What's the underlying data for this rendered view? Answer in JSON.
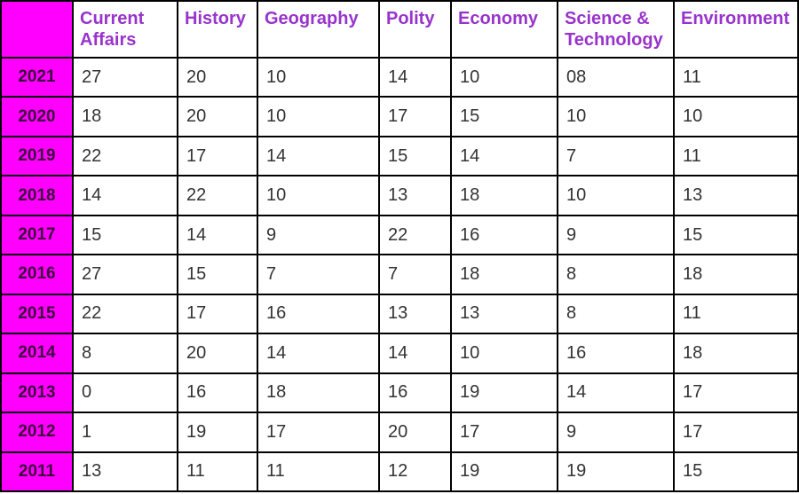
{
  "colors": {
    "magenta_fill": "#FF00FF",
    "header_text": "#9933CC",
    "year_text": "#3D083D",
    "cell_text": "#333333",
    "border": "#000000"
  },
  "table": {
    "corner_label": "",
    "columns": [
      "Current Affairs",
      "History",
      "Geography",
      "Polity",
      "Economy",
      "Science & Technology",
      "Environment"
    ],
    "rows": [
      {
        "year": "2021",
        "values": [
          "27",
          "20",
          "10",
          "14",
          "10",
          "08",
          "11"
        ]
      },
      {
        "year": "2020",
        "values": [
          "18",
          "20",
          "10",
          "17",
          "15",
          "10",
          "10"
        ]
      },
      {
        "year": "2019",
        "values": [
          "22",
          "17",
          "14",
          "15",
          "14",
          "7",
          "11"
        ]
      },
      {
        "year": "2018",
        "values": [
          "14",
          "22",
          "10",
          "13",
          "18",
          "10",
          "13"
        ]
      },
      {
        "year": "2017",
        "values": [
          "15",
          "14",
          "9",
          "22",
          "16",
          "9",
          "15"
        ]
      },
      {
        "year": "2016",
        "values": [
          "27",
          "15",
          "7",
          "7",
          "18",
          "8",
          "18"
        ]
      },
      {
        "year": "2015",
        "values": [
          "22",
          "17",
          "16",
          "13",
          "13",
          "8",
          "11"
        ]
      },
      {
        "year": "2014",
        "values": [
          "8",
          "20",
          "14",
          "14",
          "10",
          "16",
          "18"
        ]
      },
      {
        "year": "2013",
        "values": [
          "0",
          "16",
          "18",
          "16",
          "19",
          "14",
          "17"
        ]
      },
      {
        "year": "2012",
        "values": [
          "1",
          "19",
          "17",
          "20",
          "17",
          "9",
          "17"
        ]
      },
      {
        "year": "2011",
        "values": [
          "13",
          "11",
          "11",
          "12",
          "19",
          "19",
          "15"
        ]
      }
    ]
  },
  "chart_data": {
    "type": "table",
    "title": "",
    "categories": [
      "2021",
      "2020",
      "2019",
      "2018",
      "2017",
      "2016",
      "2015",
      "2014",
      "2013",
      "2012",
      "2011"
    ],
    "series": [
      {
        "name": "Current Affairs",
        "values": [
          27,
          18,
          22,
          14,
          15,
          27,
          22,
          8,
          0,
          1,
          13
        ]
      },
      {
        "name": "History",
        "values": [
          20,
          20,
          17,
          22,
          14,
          15,
          17,
          20,
          16,
          19,
          11
        ]
      },
      {
        "name": "Geography",
        "values": [
          10,
          10,
          14,
          10,
          9,
          7,
          16,
          14,
          18,
          17,
          11
        ]
      },
      {
        "name": "Polity",
        "values": [
          14,
          17,
          15,
          13,
          22,
          7,
          13,
          14,
          16,
          20,
          12
        ]
      },
      {
        "name": "Economy",
        "values": [
          10,
          15,
          14,
          18,
          16,
          18,
          13,
          10,
          19,
          17,
          19
        ]
      },
      {
        "name": "Science & Technology",
        "values": [
          8,
          10,
          7,
          10,
          9,
          8,
          8,
          16,
          14,
          9,
          19
        ]
      },
      {
        "name": "Environment",
        "values": [
          11,
          10,
          11,
          13,
          15,
          18,
          11,
          18,
          17,
          17,
          15
        ]
      }
    ]
  }
}
